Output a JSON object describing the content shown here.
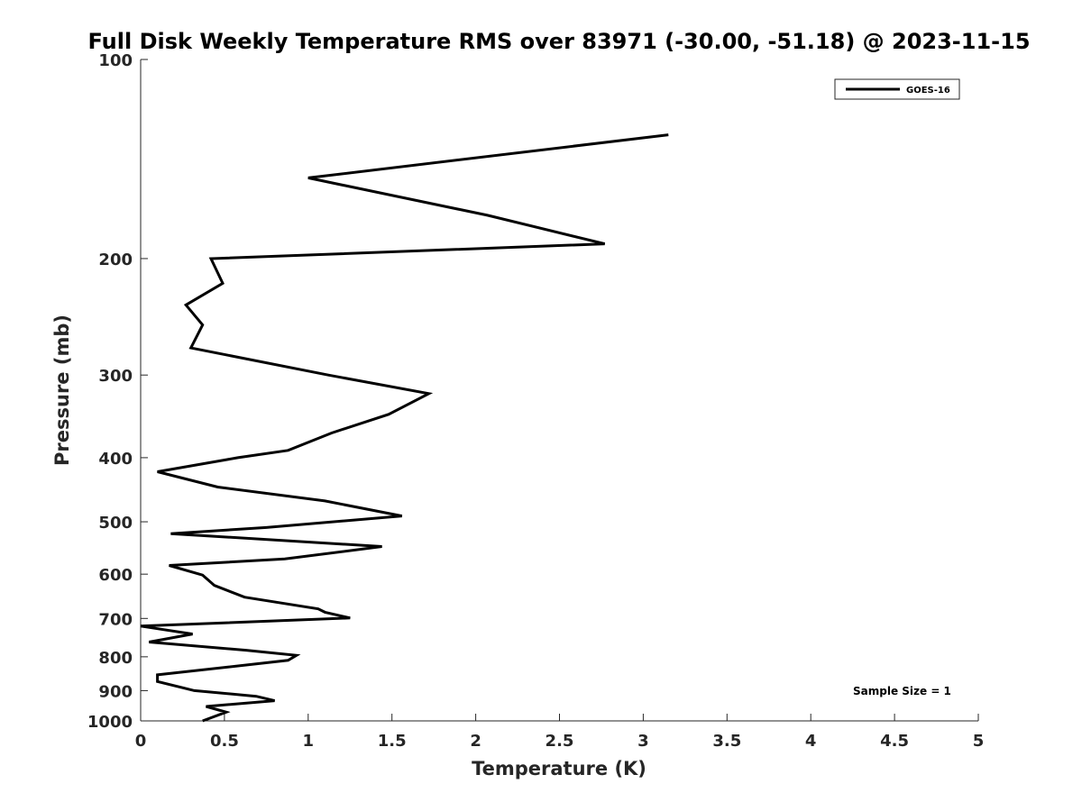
{
  "chart_data": {
    "type": "line",
    "title": "Full Disk Weekly Temperature RMS over 83971 (-30.00, -51.18) @ 2023-11-15",
    "xlabel": "Temperature (K)",
    "ylabel": "Pressure (mb)",
    "xlim": [
      0,
      5
    ],
    "ylim": [
      100,
      1000
    ],
    "y_scale": "log",
    "y_reversed": true,
    "grid": false,
    "legend_position": "top-right",
    "x_ticks": [
      0,
      0.5,
      1,
      1.5,
      2,
      2.5,
      3,
      3.5,
      4,
      4.5,
      5
    ],
    "x_tick_labels": [
      "0",
      "0.5",
      "1",
      "1.5",
      "2",
      "2.5",
      "3",
      "3.5",
      "4",
      "4.5",
      "5"
    ],
    "y_ticks": [
      100,
      200,
      300,
      400,
      500,
      600,
      700,
      800,
      900,
      1000
    ],
    "y_tick_labels": [
      "100",
      "200",
      "300",
      "400",
      "500",
      "600",
      "700",
      "800",
      "900",
      "1000"
    ],
    "series": [
      {
        "name": "GOES-16",
        "color": "#000000",
        "x": [
          3.15,
          1.0,
          2.07,
          2.77,
          0.42,
          0.49,
          0.27,
          0.37,
          0.3,
          1.12,
          1.72,
          1.48,
          1.14,
          0.88,
          0.58,
          0.1,
          0.46,
          1.1,
          1.56,
          0.75,
          0.18,
          1.44,
          0.86,
          0.17,
          0.37,
          0.44,
          0.62,
          1.06,
          1.1,
          1.25,
          0.0,
          0.31,
          0.05,
          0.63,
          0.93,
          0.88,
          0.1,
          0.1,
          0.32,
          0.69,
          0.8,
          0.39,
          0.51,
          0.37
        ],
        "y": [
          130,
          151,
          172,
          190,
          200,
          218,
          235,
          252,
          273,
          300,
          320,
          344,
          367,
          390,
          400,
          420,
          443,
          465,
          490,
          510,
          521,
          545,
          569,
          582,
          602,
          624,
          650,
          677,
          685,
          699,
          719,
          739,
          760,
          782,
          796,
          810,
          852,
          872,
          900,
          918,
          932,
          951,
          970,
          1000
        ]
      }
    ],
    "annotations": [
      "Sample Size = 1"
    ]
  }
}
